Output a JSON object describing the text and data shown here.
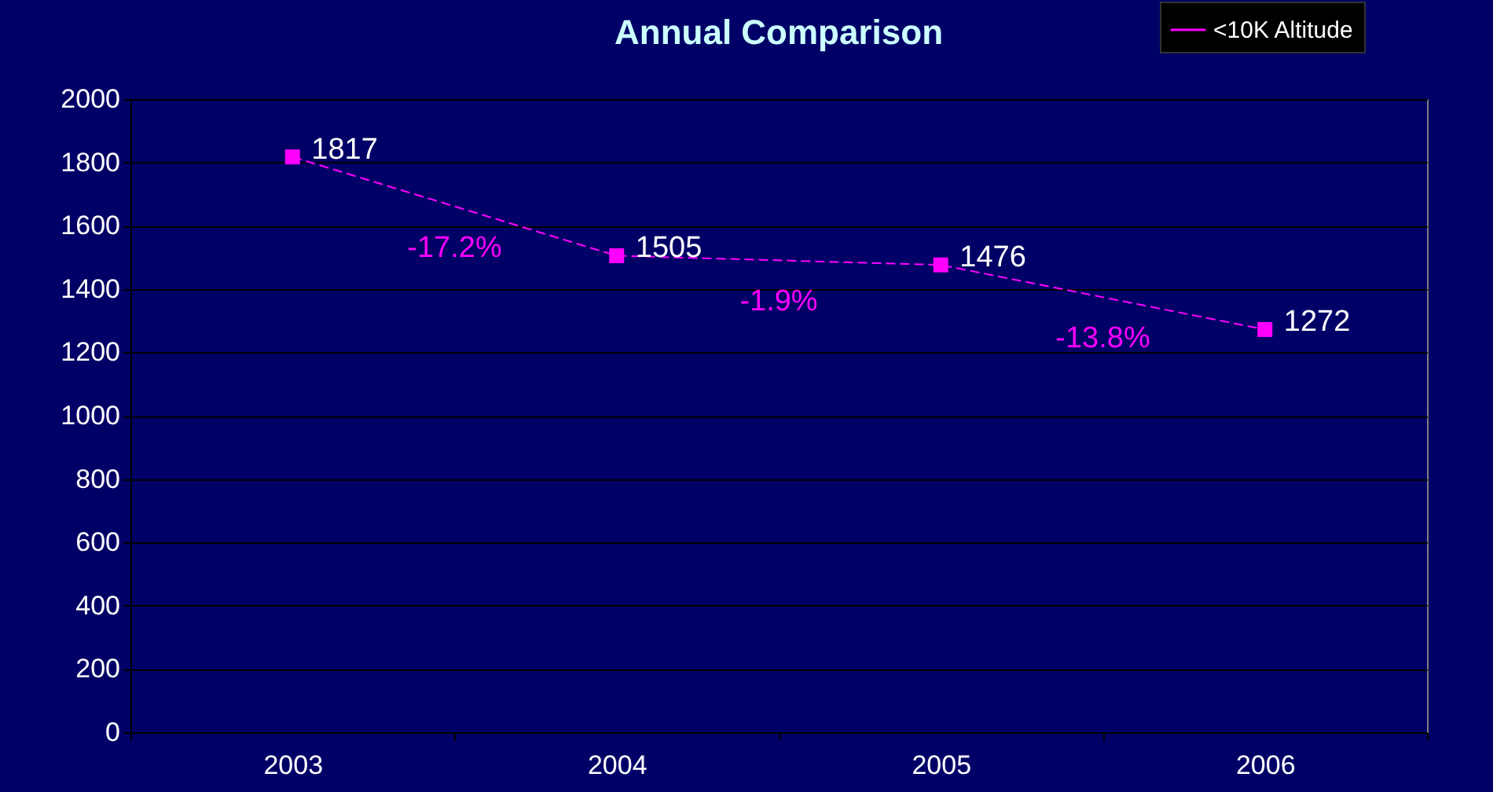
{
  "chart_data": {
    "type": "line",
    "title": "Annual Comparison",
    "categories": [
      "2003",
      "2004",
      "2005",
      "2006"
    ],
    "series": [
      {
        "name": "<10K Altitude",
        "color": "#ff00ff",
        "values": [
          1817,
          1505,
          1476,
          1272
        ]
      }
    ],
    "annotations": [
      "-17.2%",
      "-1.9%",
      "-13.8%"
    ],
    "ylim": [
      0,
      2000
    ],
    "yticks": [
      0,
      200,
      400,
      600,
      800,
      1000,
      1200,
      1400,
      1600,
      1800,
      2000
    ],
    "grid": "y",
    "legend": "top right",
    "marker": "square",
    "line_style": "dashed",
    "data_labels": true
  }
}
